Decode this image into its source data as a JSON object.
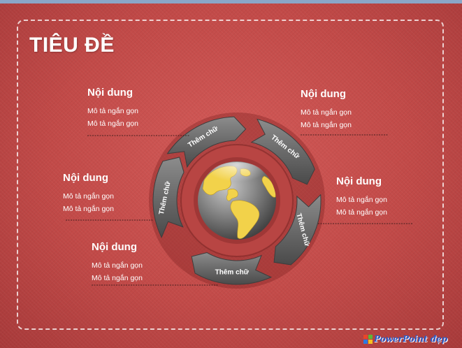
{
  "slide": {
    "title": "TIÊU ĐỀ",
    "blocks": [
      {
        "heading": "Nội dung",
        "line1": "Mô tả ngắn gọn",
        "line2": "Mô tả ngắn gọn"
      },
      {
        "heading": "Nội dung",
        "line1": "Mô tả ngắn gọn",
        "line2": "Mô tả ngắn gọn"
      },
      {
        "heading": "Nội dung",
        "line1": "Mô tả ngắn gọn",
        "line2": "Mô tả ngắn gọn"
      },
      {
        "heading": "Nội dung",
        "line1": "Mô tả ngắn gọn",
        "line2": "Mô tả ngắn gọn"
      },
      {
        "heading": "Nội dung",
        "line1": "Mô tả ngắn gọn",
        "line2": "Mô tả ngắn gọn"
      }
    ],
    "cycle_labels": [
      "Thêm chữ",
      "Thêm chữ",
      "Thêm chữ",
      "Thêm chữ",
      "Thêm chữ"
    ],
    "center_icon": "globe-icon"
  },
  "logo": {
    "text": "PowerPoint đẹp",
    "icon": "windows-flag-icon"
  },
  "colors": {
    "background": "#c24a48",
    "segment": "#6f6f6f",
    "land": "#f2d24a",
    "accent_blue": "#2a5bc8"
  }
}
